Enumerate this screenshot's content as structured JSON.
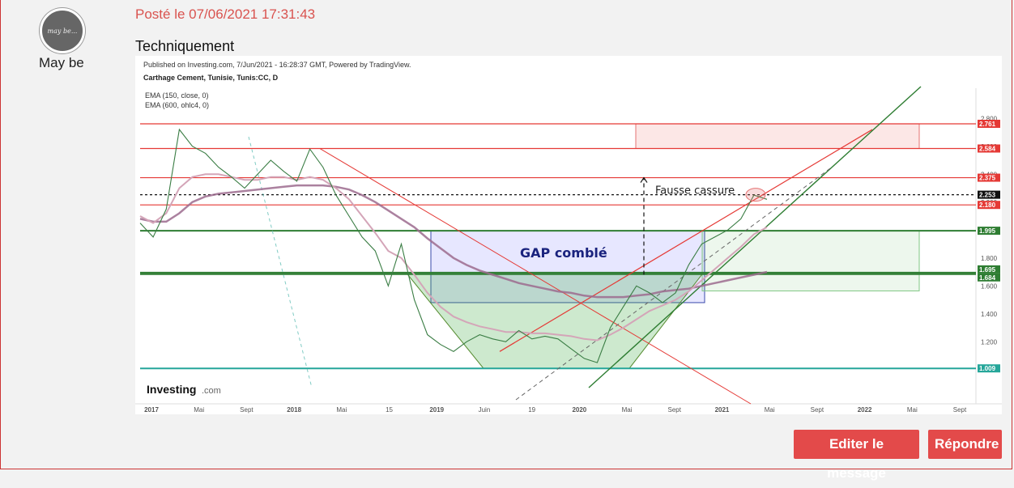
{
  "post": {
    "posted_label": "Posté le 07/06/2021 17:31:43",
    "title": "Techniquement",
    "author": {
      "name": "May be",
      "avatar_text": "may be..."
    },
    "buttons": {
      "edit": "Editer le message",
      "reply": "Répondre"
    }
  },
  "chart_data": {
    "type": "line",
    "header": "Published on Investing.com, 7/Jun/2021 - 16:28:37 GMT, Powered by TradingView.",
    "instrument": "Carthage Cement, Tunisie, Tunis:CC, D",
    "indicators": [
      "EMA (150, close, 0)",
      "EMA (600, ohlc4, 0)"
    ],
    "brand": "Investing",
    "brand_suffix": ".com",
    "annotations": {
      "gap": "GAP comblé",
      "false_break": "Fausse cassure"
    },
    "x_ticks": [
      "2017",
      "Mai",
      "Sept",
      "2018",
      "Mai",
      "15",
      "2019",
      "Juin",
      "19",
      "2020",
      "Mai",
      "Sept",
      "2021",
      "Mai",
      "Sept",
      "2022",
      "Mai",
      "Sept"
    ],
    "y_ticks": [
      1.2,
      1.4,
      1.6,
      1.8,
      2.0,
      2.2,
      2.4,
      2.6,
      2.8
    ],
    "y_tick_labels": [
      "1.200",
      "1.400",
      "1.600",
      "1.800",
      "2.000",
      "2.200",
      "2.400",
      "2.600",
      "2.800"
    ],
    "price_levels": [
      {
        "value": 2.761,
        "label": "2.761",
        "color": "#e53935"
      },
      {
        "value": 2.584,
        "label": "2.584",
        "color": "#e53935"
      },
      {
        "value": 2.375,
        "label": "2.375",
        "color": "#e53935"
      },
      {
        "value": 2.253,
        "label": "2.253",
        "color": "#111111"
      },
      {
        "value": 2.18,
        "label": "2.180",
        "color": "#e53935"
      },
      {
        "value": 1.995,
        "label": "1.995",
        "color": "#2e7d32"
      },
      {
        "value": 1.695,
        "label": "1.695",
        "color": "#2e7d32"
      },
      {
        "value": 1.684,
        "label": "1.684",
        "color": "#2e7d32"
      },
      {
        "value": 1.009,
        "label": "1.009",
        "color": "#26a69a"
      }
    ],
    "ylim": [
      0.9,
      2.9
    ],
    "close_series": [
      2.05,
      1.95,
      2.15,
      2.72,
      2.6,
      2.55,
      2.45,
      2.38,
      2.3,
      2.4,
      2.5,
      2.42,
      2.35,
      2.58,
      2.45,
      2.25,
      2.1,
      1.95,
      1.85,
      1.6,
      1.9,
      1.5,
      1.25,
      1.18,
      1.13,
      1.2,
      1.25,
      1.22,
      1.2,
      1.28,
      1.22,
      1.24,
      1.22,
      1.15,
      1.08,
      1.05,
      1.3,
      1.45,
      1.6,
      1.55,
      1.48,
      1.55,
      1.75,
      1.9,
      1.95,
      2.0,
      2.08,
      2.25,
      2.22
    ],
    "ema150": [
      2.1,
      2.05,
      2.12,
      2.3,
      2.38,
      2.4,
      2.4,
      2.38,
      2.36,
      2.36,
      2.38,
      2.38,
      2.36,
      2.38,
      2.36,
      2.3,
      2.22,
      2.1,
      1.98,
      1.85,
      1.8,
      1.68,
      1.55,
      1.45,
      1.38,
      1.34,
      1.31,
      1.29,
      1.27,
      1.27,
      1.26,
      1.26,
      1.25,
      1.24,
      1.22,
      1.21,
      1.25,
      1.3,
      1.36,
      1.42,
      1.46,
      1.5,
      1.56,
      1.64,
      1.72,
      1.8,
      1.88,
      1.97,
      2.02
    ],
    "ema600": [
      2.08,
      2.06,
      2.06,
      2.12,
      2.2,
      2.24,
      2.26,
      2.27,
      2.28,
      2.29,
      2.3,
      2.31,
      2.32,
      2.32,
      2.32,
      2.31,
      2.29,
      2.25,
      2.2,
      2.14,
      2.08,
      2.02,
      1.94,
      1.87,
      1.8,
      1.75,
      1.71,
      1.68,
      1.65,
      1.62,
      1.6,
      1.58,
      1.56,
      1.55,
      1.53,
      1.52,
      1.52,
      1.52,
      1.53,
      1.54,
      1.56,
      1.57,
      1.58,
      1.6,
      1.62,
      1.64,
      1.66,
      1.68,
      1.7
    ]
  }
}
